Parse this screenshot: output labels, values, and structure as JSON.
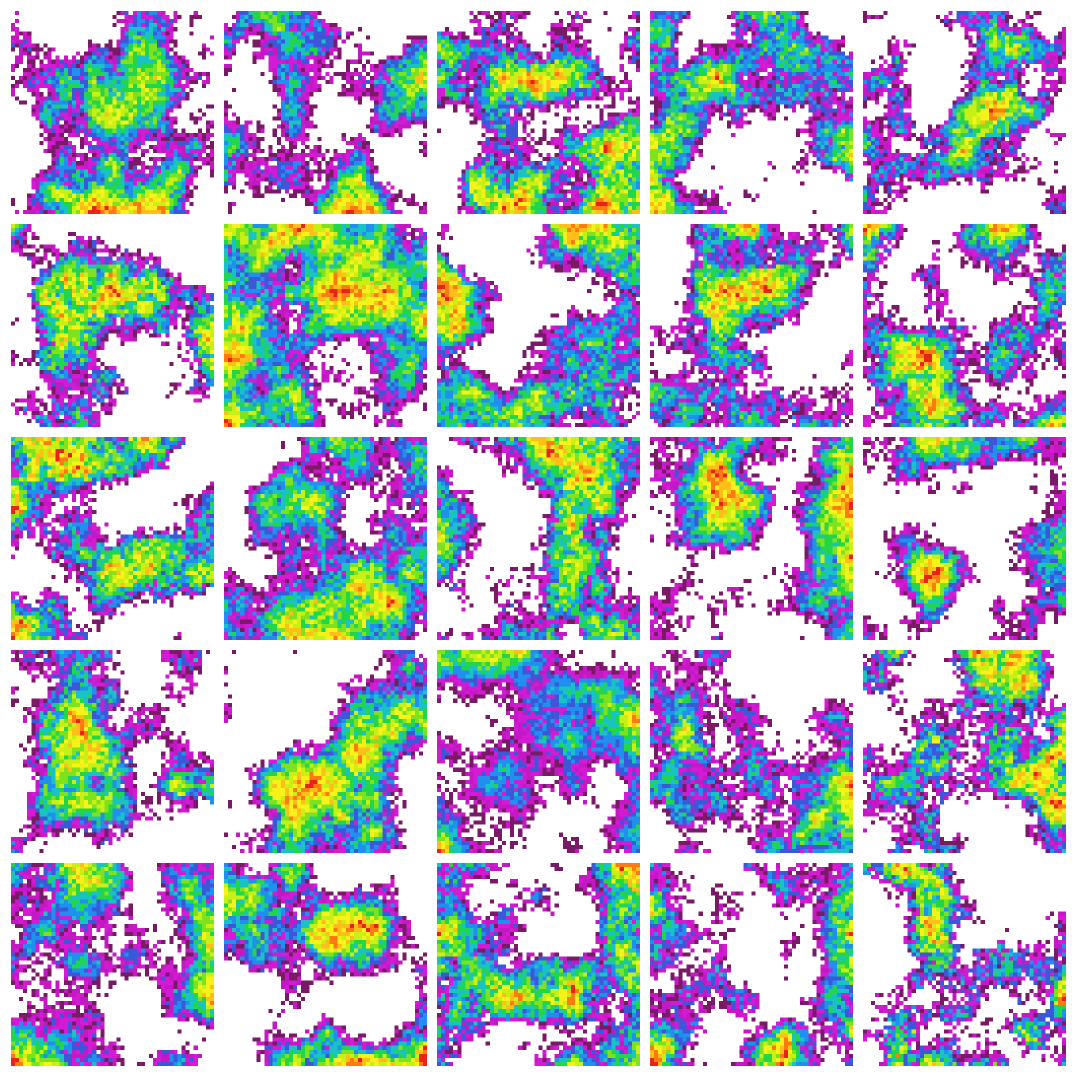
{
  "grid": {
    "rows": 5,
    "columns": 5,
    "tile_count": 25,
    "background_color": "#ffffff",
    "colormap": [
      "#7a1a66",
      "#c418c4",
      "#d41ad4",
      "#3b58d8",
      "#1f8ff0",
      "#19c3c3",
      "#22d64a",
      "#7fe21e",
      "#c8f014",
      "#f6f21a",
      "#ffbf18",
      "#ff7a10",
      "#e8241a"
    ],
    "tiles": [
      {
        "id": "r1c1",
        "seed": 11,
        "coverage": 0.7
      },
      {
        "id": "r1c2",
        "seed": 23,
        "coverage": 0.58
      },
      {
        "id": "r1c3",
        "seed": 37,
        "coverage": 0.72
      },
      {
        "id": "r1c4",
        "seed": 41,
        "coverage": 0.62
      },
      {
        "id": "r1c5",
        "seed": 53,
        "coverage": 0.55
      },
      {
        "id": "r2c1",
        "seed": 67,
        "coverage": 0.55
      },
      {
        "id": "r2c2",
        "seed": 71,
        "coverage": 0.88
      },
      {
        "id": "r2c3",
        "seed": 83,
        "coverage": 0.66
      },
      {
        "id": "r2c4",
        "seed": 97,
        "coverage": 0.62
      },
      {
        "id": "r2c5",
        "seed": 101,
        "coverage": 0.64
      },
      {
        "id": "r3c1",
        "seed": 113,
        "coverage": 0.62
      },
      {
        "id": "r3c2",
        "seed": 127,
        "coverage": 0.78
      },
      {
        "id": "r3c3",
        "seed": 131,
        "coverage": 0.62
      },
      {
        "id": "r3c4",
        "seed": 149,
        "coverage": 0.6
      },
      {
        "id": "r3c5",
        "seed": 151,
        "coverage": 0.45
      },
      {
        "id": "r4c1",
        "seed": 163,
        "coverage": 0.58
      },
      {
        "id": "r4c2",
        "seed": 173,
        "coverage": 0.55
      },
      {
        "id": "r4c3",
        "seed": 181,
        "coverage": 0.7
      },
      {
        "id": "r4c4",
        "seed": 191,
        "coverage": 0.62
      },
      {
        "id": "r4c5",
        "seed": 197,
        "coverage": 0.64
      },
      {
        "id": "r5c1",
        "seed": 211,
        "coverage": 0.68
      },
      {
        "id": "r5c2",
        "seed": 223,
        "coverage": 0.58
      },
      {
        "id": "r5c3",
        "seed": 227,
        "coverage": 0.7
      },
      {
        "id": "r5c4",
        "seed": 233,
        "coverage": 0.56
      },
      {
        "id": "r5c5",
        "seed": 241,
        "coverage": 0.5
      }
    ]
  }
}
